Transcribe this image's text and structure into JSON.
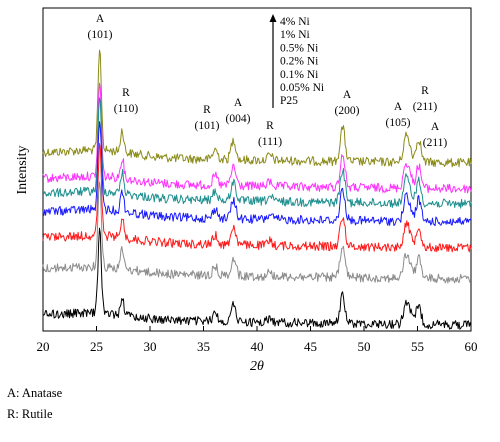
{
  "chart_data": {
    "type": "line",
    "xlabel": "2θ",
    "ylabel": "Intensity",
    "xlim": [
      20,
      60
    ],
    "x_ticks": [
      "20",
      "25",
      "30",
      "35",
      "40",
      "45",
      "50",
      "55",
      "60"
    ],
    "y_ticks": "none",
    "grid": false,
    "legend": {
      "placement": "top-center",
      "order_note": "arrow indicates stacking order, top to bottom",
      "entries": [
        "4% Ni",
        "1% Ni",
        "0.5% Ni",
        "0.2% Ni",
        "0.1% Ni",
        "0.05% Ni",
        "P25"
      ]
    },
    "series": [
      {
        "name": "4% Ni",
        "color": "#8b8b1a"
      },
      {
        "name": "1% Ni",
        "color": "#ff33ff"
      },
      {
        "name": "0.5% Ni",
        "color": "#1f8f8f"
      },
      {
        "name": "0.2% Ni",
        "color": "#1a1aff"
      },
      {
        "name": "0.1% Ni",
        "color": "#ff1a1a"
      },
      {
        "name": "0.05% Ni",
        "color": "#8c8c8c"
      },
      {
        "name": "P25",
        "color": "#000000"
      }
    ],
    "peaks": [
      {
        "phase": "A",
        "hkl": "(101)",
        "two_theta": 25.3,
        "height": 1.0
      },
      {
        "phase": "R",
        "hkl": "(110)",
        "two_theta": 27.4,
        "height": 0.22
      },
      {
        "phase": "R",
        "hkl": "(101)",
        "two_theta": 36.1,
        "height": 0.1
      },
      {
        "phase": "A",
        "hkl": "(004)",
        "two_theta": 37.8,
        "height": 0.2
      },
      {
        "phase": "R",
        "hkl": "(111)",
        "two_theta": 41.2,
        "height": 0.05
      },
      {
        "phase": "A",
        "hkl": "(200)",
        "two_theta": 48.0,
        "height": 0.34
      },
      {
        "phase": "A",
        "hkl": "(105)",
        "two_theta": 53.9,
        "height": 0.24
      },
      {
        "phase": "R",
        "hkl": "(211)",
        "two_theta": 54.3,
        "height": 0.12
      },
      {
        "phase": "A",
        "hkl": "(211)",
        "two_theta": 55.1,
        "height": 0.24
      }
    ],
    "footnotes": [
      "A: Anatase",
      "R: Rutile"
    ]
  }
}
